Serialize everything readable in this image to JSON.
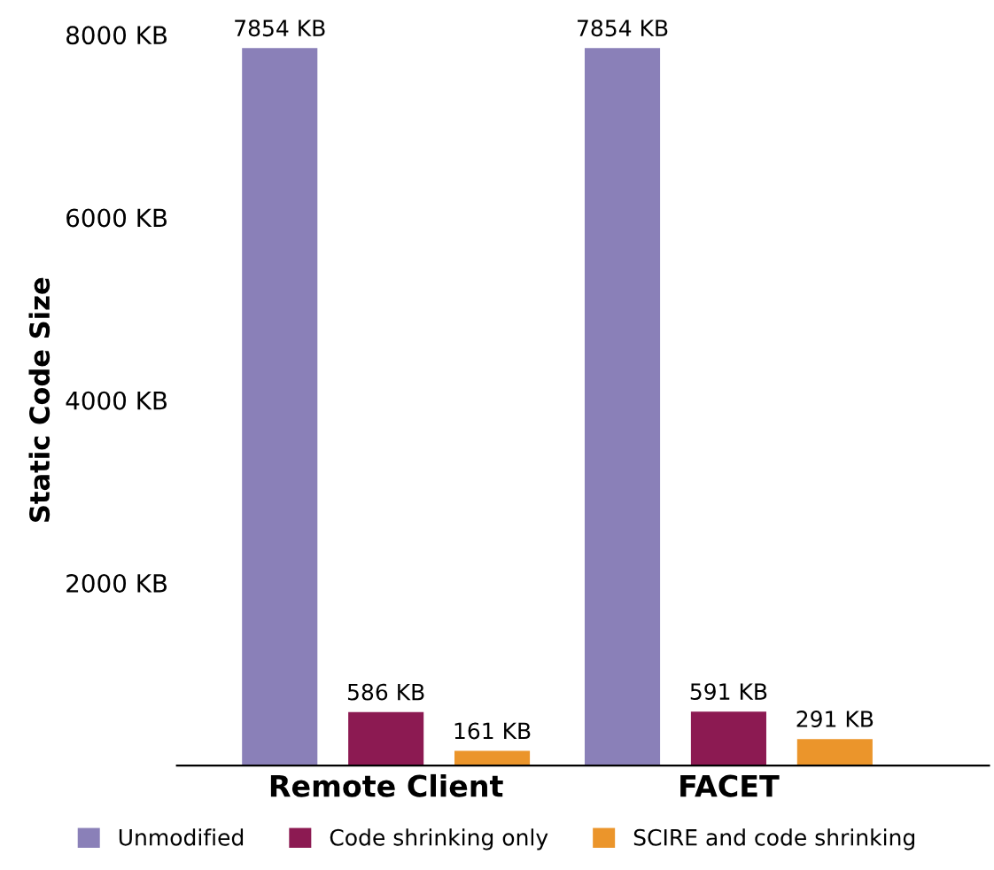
{
  "chart_data": {
    "type": "bar",
    "ylabel": "Static Code Size",
    "categories": [
      "Remote Client",
      "FACET"
    ],
    "series": [
      {
        "name": "Unmodified",
        "color": "#8a80b8",
        "values": [
          7854,
          7854
        ],
        "value_labels": [
          "7854 KB",
          "7854 KB"
        ]
      },
      {
        "name": "Code shrinking only",
        "color": "#8c1a52",
        "values": [
          586,
          591
        ],
        "value_labels": [
          "586 KB",
          "591 KB"
        ]
      },
      {
        "name": "SCIRE and code shrinking",
        "color": "#eb952b",
        "values": [
          161,
          291
        ],
        "value_labels": [
          "161 KB",
          "291 KB"
        ]
      }
    ],
    "ylim": [
      0,
      8000
    ],
    "yticks": [
      {
        "value": 2000,
        "label": "2000 KB"
      },
      {
        "value": 4000,
        "label": "4000 KB"
      },
      {
        "value": 6000,
        "label": "6000 KB"
      },
      {
        "value": 8000,
        "label": "8000 KB"
      }
    ],
    "grid": false,
    "legend": "bottom"
  }
}
